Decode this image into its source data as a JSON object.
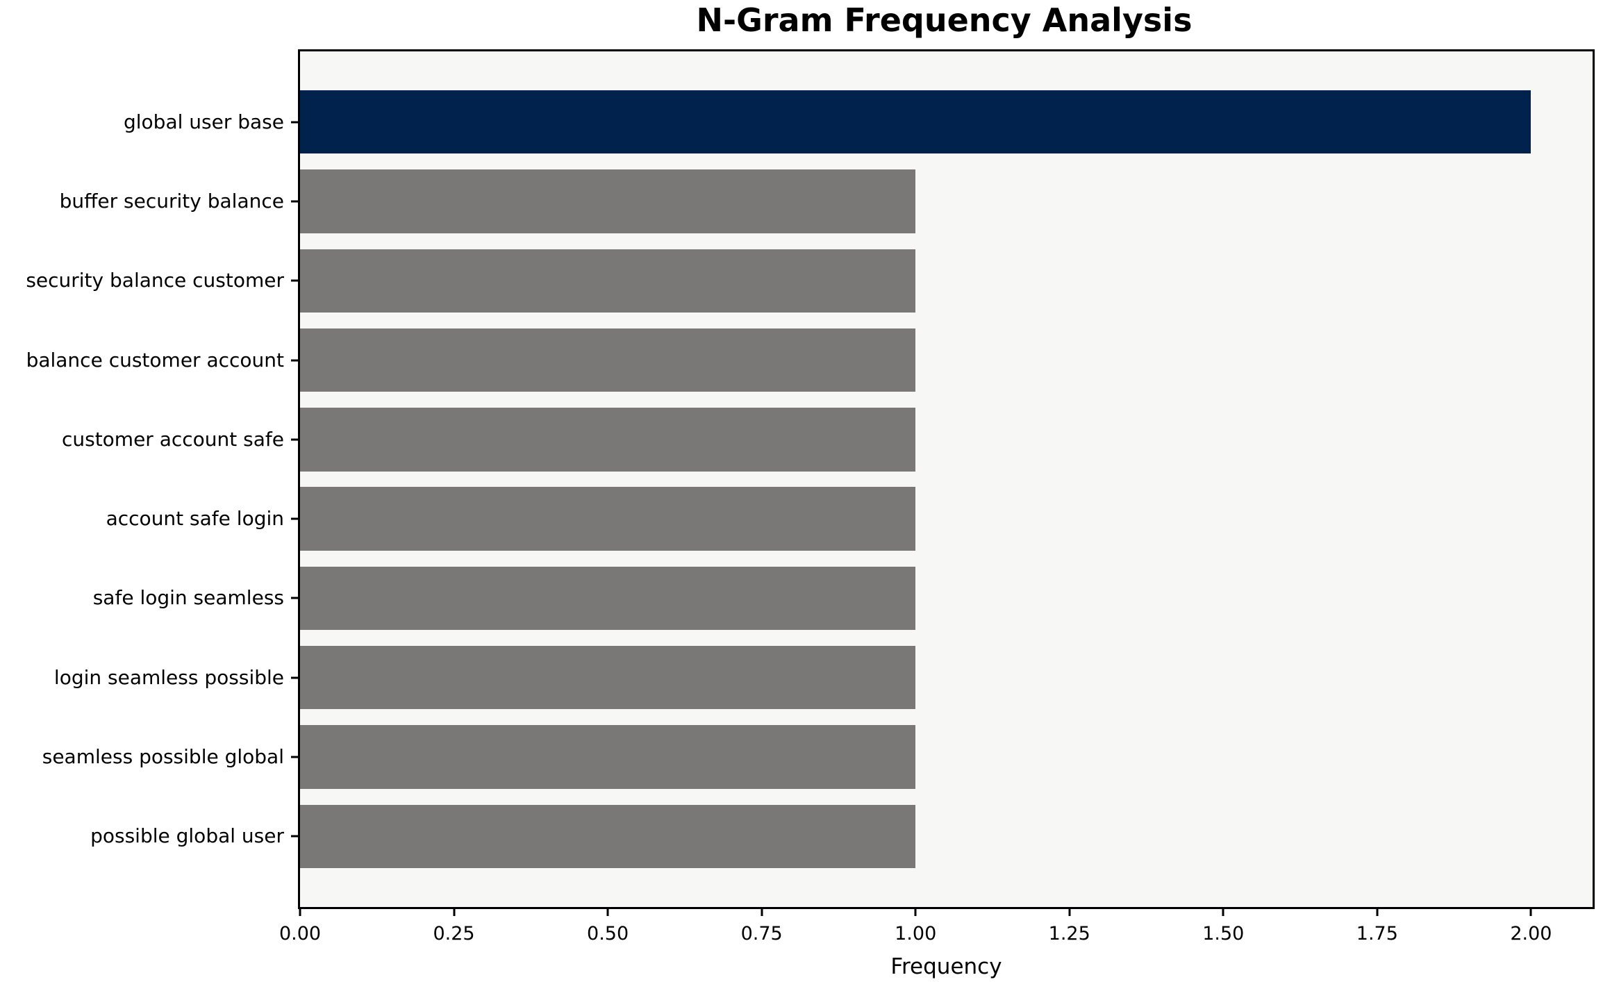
{
  "chart_data": {
    "type": "bar",
    "orientation": "horizontal",
    "title": "N-Gram Frequency Analysis",
    "xlabel": "Frequency",
    "ylabel": "",
    "categories": [
      "global user base",
      "buffer security balance",
      "security balance customer",
      "balance customer account",
      "customer account safe",
      "account safe login",
      "safe login seamless",
      "login seamless possible",
      "seamless possible global",
      "possible global user"
    ],
    "values": [
      2,
      1,
      1,
      1,
      1,
      1,
      1,
      1,
      1,
      1
    ],
    "xlim": [
      0,
      2.1
    ],
    "xticks": [
      0.0,
      0.25,
      0.5,
      0.75,
      1.0,
      1.25,
      1.5,
      1.75,
      2.0
    ],
    "xtick_labels": [
      "0.00",
      "0.25",
      "0.50",
      "0.75",
      "1.00",
      "1.25",
      "1.50",
      "1.75",
      "2.00"
    ],
    "grid": false,
    "legend": null,
    "colors": {
      "highlight_bar": "#01224d",
      "default_bar": "#7a7876",
      "plot_background": "#f7f7f6",
      "figure_background": "#ffffff",
      "spine": "#000000",
      "text": "#000000"
    },
    "highlight_index": 0,
    "bar_height_fraction": 0.8
  }
}
